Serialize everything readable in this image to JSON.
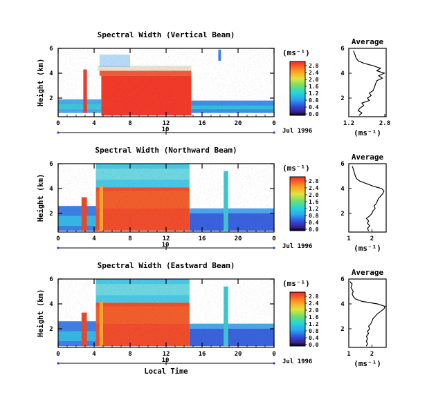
{
  "chart_data": [
    {
      "type": "heatmap",
      "title": "Spectral Width (Vertical Beam)",
      "ylabel": "Height (km)",
      "xlim": [
        0,
        24
      ],
      "ylim": [
        0.5,
        6
      ],
      "x_ticks": [
        "0",
        "4",
        "8",
        "12",
        "16",
        "20",
        "0"
      ],
      "y_ticks": [
        "2",
        "4",
        "6"
      ],
      "date_ticks": [
        "10"
      ],
      "date_label": "Jul 1996",
      "colorbar": {
        "unit": "(ms⁻¹)",
        "ticks": [
          "0.0",
          "0.4",
          "0.8",
          "1.2",
          "1.6",
          "2.0",
          "2.4",
          "2.8"
        ]
      },
      "profile": {
        "title": "Average",
        "xlabel": "(ms⁻¹)",
        "x_ticks": [
          "1.2",
          "2.8"
        ],
        "y_ticks": [
          "2",
          "4",
          "6"
        ],
        "xlim": [
          1.0,
          3.0
        ],
        "points": [
          [
            1.55,
            0.6
          ],
          [
            1.7,
            0.8
          ],
          [
            1.5,
            1.0
          ],
          [
            1.6,
            1.2
          ],
          [
            1.8,
            1.4
          ],
          [
            1.7,
            1.6
          ],
          [
            2.1,
            1.8
          ],
          [
            2.0,
            2.0
          ],
          [
            2.2,
            2.2
          ],
          [
            2.1,
            2.4
          ],
          [
            2.3,
            2.6
          ],
          [
            2.35,
            2.8
          ],
          [
            2.4,
            3.0
          ],
          [
            2.45,
            3.2
          ],
          [
            2.5,
            3.4
          ],
          [
            2.8,
            3.6
          ],
          [
            2.6,
            3.8
          ],
          [
            2.9,
            4.0
          ],
          [
            2.5,
            4.2
          ],
          [
            2.7,
            4.4
          ],
          [
            2.3,
            4.6
          ],
          [
            1.8,
            4.8
          ],
          [
            1.5,
            5.0
          ],
          [
            1.4,
            5.2
          ],
          [
            1.35,
            5.4
          ],
          [
            1.3,
            5.6
          ],
          [
            1.25,
            5.8
          ]
        ]
      }
    },
    {
      "type": "heatmap",
      "title": "Spectral Width (Northward Beam)",
      "ylabel": "Height (km)",
      "xlim": [
        0,
        24
      ],
      "ylim": [
        0.5,
        6
      ],
      "x_ticks": [
        "0",
        "4",
        "8",
        "12",
        "16",
        "20",
        "0"
      ],
      "y_ticks": [
        "2",
        "4",
        "6"
      ],
      "date_ticks": [
        "10"
      ],
      "date_label": "Jul 1996",
      "colorbar": {
        "unit": "(ms⁻¹)",
        "ticks": [
          "0.0",
          "0.4",
          "0.8",
          "1.2",
          "1.6",
          "2.0",
          "2.4",
          "2.8"
        ]
      },
      "profile": {
        "title": "Average",
        "xlabel": "(ms⁻¹)",
        "x_ticks": [
          "1",
          "2"
        ],
        "y_ticks": [
          "2",
          "4",
          "6"
        ],
        "xlim": [
          1.0,
          2.7
        ],
        "points": [
          [
            1.9,
            0.6
          ],
          [
            1.85,
            0.8
          ],
          [
            1.95,
            1.0
          ],
          [
            1.85,
            1.2
          ],
          [
            1.9,
            1.4
          ],
          [
            1.8,
            1.6
          ],
          [
            1.95,
            1.8
          ],
          [
            2.05,
            2.0
          ],
          [
            2.1,
            2.2
          ],
          [
            2.2,
            2.4
          ],
          [
            2.15,
            2.6
          ],
          [
            2.25,
            2.8
          ],
          [
            2.3,
            3.0
          ],
          [
            2.35,
            3.2
          ],
          [
            2.45,
            3.4
          ],
          [
            2.55,
            3.6
          ],
          [
            2.6,
            3.8
          ],
          [
            2.5,
            4.0
          ],
          [
            2.1,
            4.2
          ],
          [
            1.8,
            4.4
          ],
          [
            1.5,
            4.6
          ],
          [
            1.35,
            4.8
          ],
          [
            1.3,
            5.0
          ],
          [
            1.25,
            5.3
          ],
          [
            1.2,
            5.6
          ],
          [
            1.15,
            5.8
          ]
        ]
      }
    },
    {
      "type": "heatmap",
      "title": "Spectral Width (Eastward Beam)",
      "ylabel": "Height (km)",
      "xlabel": "Local Time",
      "xlim": [
        0,
        24
      ],
      "ylim": [
        0.5,
        6
      ],
      "x_ticks": [
        "0",
        "4",
        "8",
        "12",
        "16",
        "20",
        "0"
      ],
      "y_ticks": [
        "2",
        "4",
        "6"
      ],
      "date_ticks": [
        "10"
      ],
      "date_label": "Jul 1996",
      "colorbar": {
        "unit": "(ms⁻¹)",
        "ticks": [
          "0.0",
          "0.4",
          "0.8",
          "1.2",
          "1.6",
          "2.0",
          "2.4",
          "2.8"
        ]
      },
      "profile": {
        "title": "Average",
        "xlabel": "(ms⁻¹)",
        "x_ticks": [
          "1",
          "2"
        ],
        "y_ticks": [
          "2",
          "4",
          "6"
        ],
        "xlim": [
          1.0,
          2.7
        ],
        "points": [
          [
            1.8,
            0.6
          ],
          [
            1.85,
            0.8
          ],
          [
            1.8,
            1.0
          ],
          [
            1.85,
            1.2
          ],
          [
            1.8,
            1.4
          ],
          [
            1.9,
            1.6
          ],
          [
            1.85,
            1.8
          ],
          [
            1.95,
            2.0
          ],
          [
            1.9,
            2.2
          ],
          [
            2.0,
            2.4
          ],
          [
            2.05,
            2.6
          ],
          [
            2.1,
            2.8
          ],
          [
            2.2,
            3.0
          ],
          [
            2.3,
            3.2
          ],
          [
            2.45,
            3.4
          ],
          [
            2.6,
            3.6
          ],
          [
            2.65,
            3.8
          ],
          [
            2.3,
            4.0
          ],
          [
            1.6,
            4.2
          ],
          [
            1.3,
            4.4
          ],
          [
            1.2,
            4.6
          ],
          [
            1.15,
            4.8
          ],
          [
            1.2,
            5.0
          ],
          [
            1.1,
            5.3
          ],
          [
            1.15,
            5.6
          ],
          [
            1.05,
            5.8
          ]
        ]
      }
    }
  ]
}
